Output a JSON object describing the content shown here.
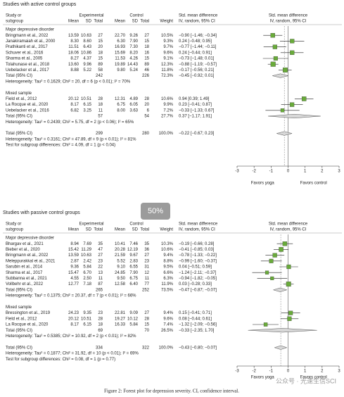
{
  "chart_data": [
    {
      "type": "forest",
      "title": "Studies with active control groups",
      "columns": {
        "study": [
          "Study or",
          "subgroup"
        ],
        "experimental": "Experimental",
        "control": "Control",
        "mean": "Mean",
        "sd": "SD",
        "total": "Total",
        "weight": "Weight",
        "effect": [
          "Std. mean difference",
          "IV, random, 95% CI"
        ]
      },
      "groups": [
        {
          "name": "Major depressive disorder",
          "studies": [
            {
              "study": "Bringmann et al., 2022",
              "experimental": [
                "13.59",
                "10.63",
                "27"
              ],
              "control": [
                "22.70",
                "9.26",
                "27"
              ],
              "weight": 10.5,
              "weight_label": "10.5%",
              "smd": -0.9,
              "lo": -1.46,
              "hi": -0.34,
              "ci_label": "−0.90 [−1.46; −0.34]"
            },
            {
              "study": "Janakiramaiah et al., 2000",
              "experimental": [
                "8.30",
                "8.60",
                "15"
              ],
              "control": [
                "6.30",
                "7.90",
                "15"
              ],
              "weight": 9.3,
              "weight_label": "9.3%",
              "smd": 0.24,
              "lo": -0.48,
              "hi": 0.95,
              "ci_label": "0.24 [−0.48; 0.95]"
            },
            {
              "study": "Prathikanti et al., 2017",
              "experimental": [
                "11.51",
                "6.43",
                "20"
              ],
              "control": [
                "16.93",
                "7.30",
                "18"
              ],
              "weight": 9.7,
              "weight_label": "9.7%",
              "smd": -0.77,
              "lo": -1.44,
              "hi": -0.11,
              "ci_label": "−0.77 [−1.44; −0.11]"
            },
            {
              "study": "Schuver et al., 2016",
              "experimental": [
                "18.06",
                "10.86",
                "18"
              ],
              "control": [
                "15.69",
                "8.20",
                "16"
              ],
              "weight": 9.6,
              "weight_label": "9.6%",
              "smd": 0.24,
              "lo": -0.44,
              "hi": 0.91,
              "ci_label": "0.24 [−0.44; 0.91]"
            },
            {
              "study": "Sharma et al., 2005",
              "experimental": [
                "8.27",
                "4.37",
                "15"
              ],
              "control": [
                "11.53",
                "4.26",
                "15"
              ],
              "weight": 9.1,
              "weight_label": "9.1%",
              "smd": -0.73,
              "lo": -1.48,
              "hi": 0.01,
              "ci_label": "−0.73 [−1.48; 0.01]"
            },
            {
              "study": "Tolahunase et al., 2018",
              "experimental": [
                "13.60",
                "9.96",
                "89"
              ],
              "control": [
                "19.89",
                "14.43",
                "89"
              ],
              "weight": 12.3,
              "weight_label": "12.3%",
              "smd": -0.88,
              "lo": -1.19,
              "hi": -0.57,
              "ci_label": "−0.88 [−1.19; −0.57]"
            },
            {
              "study": "Uebelacker et al., 2017",
              "experimental": [
                "8.88",
                "5.22",
                "58"
              ],
              "control": [
                "9.80",
                "5.24",
                "46"
              ],
              "weight": 11.8,
              "weight_label": "11.8%",
              "smd": -0.17,
              "lo": -0.56,
              "hi": 0.21,
              "ci_label": "−0.17 [−0.56; 0.21]"
            }
          ],
          "total": {
            "label": "Total (95% CI)",
            "experimental": "242",
            "control": "226",
            "weight": 72.3,
            "weight_label": "72.3%",
            "smd": -0.45,
            "lo": -0.92,
            "hi": 0.01,
            "ci_label": "−0.45 [−0.92; 0.01]"
          },
          "heterogeneity": "Heterogeneity: Tau² = 0.1629; Chi² = 20, df = 6 (p < 0.01); I² = 70%"
        },
        {
          "name": "Mixed sample",
          "studies": [
            {
              "study": "Field et al., 2012",
              "experimental": [
                "20.12",
                "10.51",
                "28"
              ],
              "control": [
                "12.31",
                "4.89",
                "28"
              ],
              "weight": 10.6,
              "weight_label": "10.6%",
              "smd": 0.94,
              "lo": 0.39,
              "hi": 1.49,
              "ci_label": "0.94 [0.39; 1.49]"
            },
            {
              "study": "La Rocque et al., 2020",
              "experimental": [
                "8.17",
                "6.15",
                "18"
              ],
              "control": [
                "6.75",
                "6.05",
                "20"
              ],
              "weight": 9.9,
              "weight_label": "9.9%",
              "smd": 0.23,
              "lo": -0.41,
              "hi": 0.87,
              "ci_label": "0.23 [−0.41; 0.87]"
            },
            {
              "study": "Uebelacker et al., 2016",
              "experimental": [
                "6.82",
                "3.25",
                "11"
              ],
              "control": [
                "8.00",
                "3.63",
                "6"
              ],
              "weight": 7.2,
              "weight_label": "7.2%",
              "smd": -0.33,
              "lo": -1.33,
              "hi": 0.67,
              "ci_label": "−0.33 [−1.33; 0.67]"
            }
          ],
          "total": {
            "label": "Total (95% CI)",
            "experimental": "57",
            "control": "54",
            "weight": 27.7,
            "weight_label": "27.7%",
            "smd": 0.37,
            "lo": -1.17,
            "hi": 1.91,
            "ci_label": "0.37 [−1.17; 1.91]"
          },
          "heterogeneity": "Heterogeneity: Tau² = 0.2439; Chi² = 5.75, df = 2 (p < 0.06); I² = 65%"
        }
      ],
      "overall": {
        "label": "Total (95% CI)",
        "experimental": "299",
        "control": "280",
        "weight": 100.0,
        "weight_label": "100.0%",
        "smd": -0.22,
        "lo": -0.67,
        "hi": 0.23,
        "ci_label": "−0.22 [−0.67; 0.23]"
      },
      "overall_heterogeneity": "Heterogeneity: Tau² = 0.3161; Chi² = 47.89, df = 9 (p < 0.01); I² = 81%",
      "subgroup_test": "Test for subgroup differences: Chi² = 4.09, df = 1 (p < 0.04)",
      "xlim": [
        -3,
        3
      ],
      "xticks": [
        -3,
        -2,
        -1,
        0,
        1,
        2,
        3
      ],
      "xlabels": [
        "Favors yoga",
        "Favors control"
      ],
      "color": "#69ab3a"
    },
    {
      "type": "forest",
      "title": "Studies with passive control groups",
      "columns": {
        "study": [
          "Study or",
          "subgroup"
        ],
        "experimental": "Experimental",
        "control": "Control",
        "mean": "Mean",
        "sd": "SD",
        "total": "Total",
        "weight": "Weight",
        "effect": [
          "Std. mean difference",
          "IV, random, 95% CI"
        ]
      },
      "groups": [
        {
          "name": "Major depressive disorder",
          "studies": [
            {
              "study": "Bhargav et al., 2021",
              "experimental": [
                "8.94",
                "7.69",
                "35"
              ],
              "control": [
                "10.41",
                "7.46",
                "35"
              ],
              "weight": 10.3,
              "weight_label": "10.3%",
              "smd": -0.19,
              "lo": -0.66,
              "hi": 0.28,
              "ci_label": "−0.19 [−0.66; 0.28]"
            },
            {
              "study": "Bieber et al., 2020",
              "experimental": [
                "15.42",
                "11.29",
                "47"
              ],
              "control": [
                "20.28",
                "12.19",
                "36"
              ],
              "weight": 10.6,
              "weight_label": "10.6%",
              "smd": -0.41,
              "lo": -0.85,
              "hi": 0.03,
              "ci_label": "−0.41 [−0.85; 0.03]"
            },
            {
              "study": "Bringmann et al., 2022",
              "experimental": [
                "13.59",
                "10.63",
                "27"
              ],
              "control": [
                "21.59",
                "9.67",
                "27"
              ],
              "weight": 9.4,
              "weight_label": "9.4%",
              "smd": -0.78,
              "lo": -1.33,
              "hi": -0.22,
              "ci_label": "−0.78 [−1.33; −0.22]"
            },
            {
              "study": "Meleppurakkal et al., 2021",
              "experimental": [
                "2.87",
                "2.42",
                "23"
              ],
              "control": [
                "5.52",
                "2.83",
                "23"
              ],
              "weight": 8.8,
              "weight_label": "8.8%",
              "smd": -0.99,
              "lo": -1.6,
              "hi": -0.37,
              "ci_label": "−0.99 [−1.60; −0.37]"
            },
            {
              "study": "Sarubin et al., 2014",
              "experimental": [
                "9.36",
                "5.84",
                "22"
              ],
              "control": [
                "9.10",
                "6.55",
                "31"
              ],
              "weight": 9.5,
              "weight_label": "9.5%",
              "smd": 0.04,
              "lo": -0.51,
              "hi": 0.59,
              "ci_label": "0.04 [−0.51; 0.59]"
            },
            {
              "study": "Sharma et al., 2017",
              "experimental": [
                "15.47",
                "6.70",
                "13"
              ],
              "control": [
                "24.85",
                "7.90",
                "12"
              ],
              "weight": 6.6,
              "weight_label": "6.6%",
              "smd": -1.24,
              "lo": -2.11,
              "hi": -0.37,
              "ci_label": "−1.24 [−2.11; −0.37]"
            },
            {
              "study": "Subbanna et al., 2021",
              "experimental": [
                "4.55",
                "2.50",
                "11"
              ],
              "control": [
                "9.50",
                "6.75",
                "11"
              ],
              "weight": 6.3,
              "weight_label": "6.3%",
              "smd": -0.94,
              "lo": -1.82,
              "hi": -0.05,
              "ci_label": "−0.94 [−1.82; −0.05]"
            },
            {
              "study": "Vollbehr et al., 2022",
              "experimental": [
                "12.77",
                "7.18",
                "87"
              ],
              "control": [
                "12.58",
                "6.40",
                "77"
              ],
              "weight": 11.9,
              "weight_label": "11.9%",
              "smd": 0.03,
              "lo": -0.28,
              "hi": 0.33,
              "ci_label": "0.03 [−0.28; 0.33]"
            }
          ],
          "total": {
            "label": "Total (95% CI)",
            "experimental": "265",
            "control": "252",
            "weight": 73.5,
            "weight_label": "73.5%",
            "smd": -0.47,
            "lo": -0.87,
            "hi": -0.07,
            "ci_label": "−0.47 [−0.87; −0.07]"
          },
          "heterogeneity": "Heterogeneity: Tau² = 0.1375; Chi² = 20.37, df = 7 (p < 0.01); I² = 66%"
        },
        {
          "name": "Mixed sample",
          "studies": [
            {
              "study": "Bressington et al., 2019",
              "experimental": [
                "24.23",
                "9.35",
                "23"
              ],
              "control": [
                "22.81",
                "9.09",
                "27"
              ],
              "weight": 9.4,
              "weight_label": "9.4%",
              "smd": 0.15,
              "lo": -0.41,
              "hi": 0.71,
              "ci_label": "0.15 [−0.41; 0.71]"
            },
            {
              "study": "Field et al., 2012",
              "experimental": [
                "20.12",
                "10.51",
                "28"
              ],
              "control": [
                "19.27",
                "10.12",
                "28"
              ],
              "weight": 9.6,
              "weight_label": "9.6%",
              "smd": 0.08,
              "lo": -0.44,
              "hi": 0.61,
              "ci_label": "0.08 [−0.44; 0.61]"
            },
            {
              "study": "La Rocque et al., 2020",
              "experimental": [
                "8.17",
                "6.15",
                "18"
              ],
              "control": [
                "16.33",
                "5.84",
                "15"
              ],
              "weight": 7.4,
              "weight_label": "7.4%",
              "smd": -1.32,
              "lo": -2.09,
              "hi": -0.56,
              "ci_label": "−1.32 [−2.09; −0.56]"
            }
          ],
          "total": {
            "label": "Total (95% CI)",
            "experimental": "69",
            "control": "70",
            "weight": 26.5,
            "weight_label": "26.5%",
            "smd": -0.33,
            "lo": -2.35,
            "hi": 1.7,
            "ci_label": "−0.33 [−2.35; 1.70]"
          },
          "heterogeneity": "Heterogeneity: Tau² = 0.5385; Chi² = 10.92, df = 2 (p < 0.01); I² = 82%"
        }
      ],
      "overall": {
        "label": "Total (95% CI)",
        "experimental": "334",
        "control": "322",
        "weight": 100.0,
        "weight_label": "100.0%",
        "smd": -0.43,
        "lo": -0.8,
        "hi": -0.07,
        "ci_label": "−0.43 [−0.80; −0.07]"
      },
      "overall_heterogeneity": "Heterogeneity: Tau² = 0.1877; Chi² = 31.92, df = 10 (p < 0.01); I² = 69%",
      "subgroup_test": "Test for subgroup differences: Chi² = 0.08, df = 1 (p = 0.77)",
      "xlim": [
        -3,
        3
      ],
      "xticks": [
        -3,
        -2,
        -1,
        0,
        1,
        2,
        3
      ],
      "xlabels": [
        "Favors yoga",
        "Favors control"
      ],
      "color": "#69ab3a"
    }
  ],
  "caption": "Figure 2: Forest plot for depression severity. CI, confidence interval.",
  "overlay": "50%",
  "watermark": "公众号 · 光速生信SCI"
}
